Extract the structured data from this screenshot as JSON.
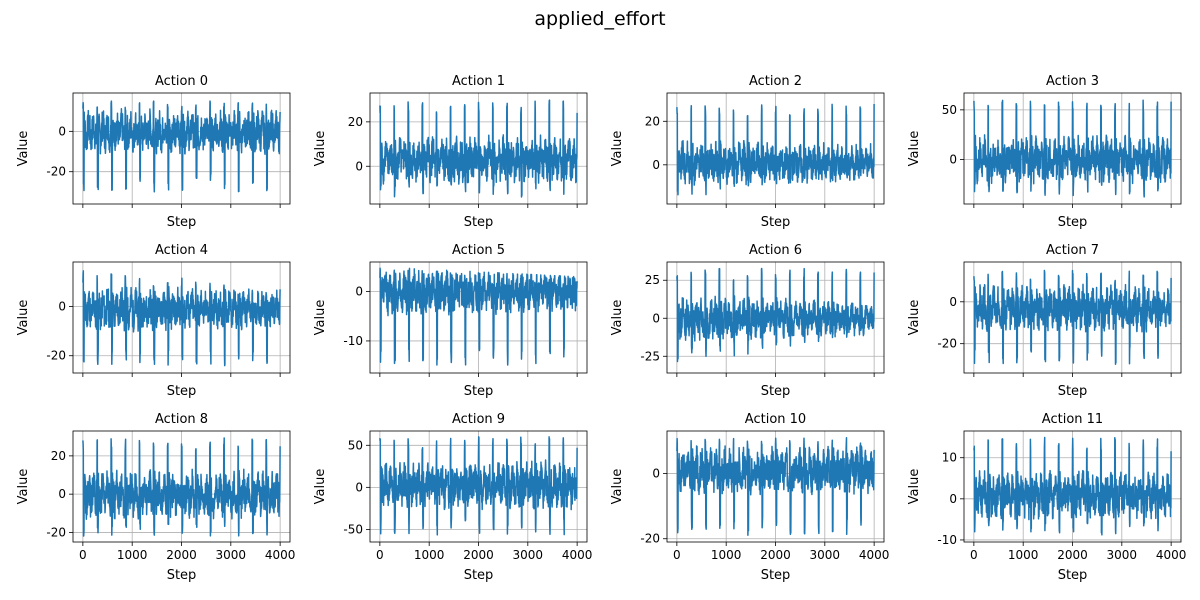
{
  "figure": {
    "title": "applied_effort"
  },
  "colors": {
    "line": "#1f77b4",
    "grid": "#b0b0b0",
    "axes": "#000000"
  },
  "chart_data": [
    {
      "type": "line",
      "title": "Action 0",
      "xlabel": "Step",
      "ylabel": "Value",
      "xlim": [
        -200,
        4200
      ],
      "ylim": [
        -36,
        19
      ],
      "yticks": [
        -20,
        0
      ],
      "xticks": [
        0,
        1000,
        2000,
        3000,
        4000
      ],
      "show_xticklabels": false,
      "grid": true,
      "series": [
        {
          "x": [
            0,
            4000
          ],
          "envelope_low": [
            -30,
            -30
          ],
          "envelope_high": [
            15,
            15
          ],
          "cycles": 14,
          "baseline": 0
        }
      ]
    },
    {
      "type": "line",
      "title": "Action 1",
      "xlabel": "Step",
      "ylabel": "Value",
      "xlim": [
        -200,
        4200
      ],
      "ylim": [
        -17,
        33
      ],
      "yticks": [
        0,
        20
      ],
      "xticks": [
        0,
        1000,
        2000,
        3000,
        4000
      ],
      "show_xticklabels": false,
      "grid": true,
      "series": [
        {
          "x": [
            0,
            4000
          ],
          "envelope_low": [
            -14,
            -14
          ],
          "envelope_high": [
            30,
            30
          ],
          "cycles": 14,
          "baseline": 3
        }
      ]
    },
    {
      "type": "line",
      "title": "Action 2",
      "xlabel": "Step",
      "ylabel": "Value",
      "xlim": [
        -200,
        4200
      ],
      "ylim": [
        -18,
        33
      ],
      "yticks": [
        0,
        20
      ],
      "xticks": [
        0,
        1000,
        2000,
        3000,
        4000
      ],
      "show_xticklabels": false,
      "grid": true,
      "series": [
        {
          "x": [
            0,
            4000
          ],
          "envelope_low": [
            -15,
            -6
          ],
          "envelope_high": [
            28,
            28
          ],
          "cycles": 14,
          "baseline": 1
        }
      ]
    },
    {
      "type": "line",
      "title": "Action 3",
      "xlabel": "Step",
      "ylabel": "Value",
      "xlim": [
        -200,
        4200
      ],
      "ylim": [
        -45,
        67
      ],
      "yticks": [
        0,
        50
      ],
      "xticks": [
        0,
        1000,
        2000,
        3000,
        4000
      ],
      "show_xticklabels": false,
      "grid": true,
      "series": [
        {
          "x": [
            0,
            4000
          ],
          "envelope_low": [
            -38,
            -38
          ],
          "envelope_high": [
            60,
            60
          ],
          "cycles": 14,
          "baseline": 0
        }
      ]
    },
    {
      "type": "line",
      "title": "Action 4",
      "xlabel": "Step",
      "ylabel": "Value",
      "xlim": [
        -200,
        4200
      ],
      "ylim": [
        -27,
        18
      ],
      "yticks": [
        -20,
        0
      ],
      "xticks": [
        0,
        1000,
        2000,
        3000,
        4000
      ],
      "show_xticklabels": false,
      "grid": true,
      "series": [
        {
          "x": [
            0,
            4000
          ],
          "envelope_low": [
            -24,
            -24
          ],
          "envelope_high": [
            15,
            8
          ],
          "cycles": 14,
          "baseline": -1
        }
      ]
    },
    {
      "type": "line",
      "title": "Action 5",
      "xlabel": "Step",
      "ylabel": "Value",
      "xlim": [
        -200,
        4200
      ],
      "ylim": [
        -16.5,
        6
      ],
      "yticks": [
        -10,
        0
      ],
      "xticks": [
        0,
        1000,
        2000,
        3000,
        4000
      ],
      "show_xticklabels": false,
      "grid": true,
      "series": [
        {
          "x": [
            0,
            4000
          ],
          "envelope_low": [
            -15,
            -15
          ],
          "envelope_high": [
            5,
            3
          ],
          "cycles": 14,
          "baseline": 0
        }
      ]
    },
    {
      "type": "line",
      "title": "Action 6",
      "xlabel": "Step",
      "ylabel": "Value",
      "xlim": [
        -200,
        4200
      ],
      "ylim": [
        -36,
        37
      ],
      "yticks": [
        -25,
        0,
        25
      ],
      "xticks": [
        0,
        1000,
        2000,
        3000,
        4000
      ],
      "show_xticklabels": false,
      "grid": true,
      "series": [
        {
          "x": [
            0,
            4000
          ],
          "envelope_low": [
            -30,
            -12
          ],
          "envelope_high": [
            33,
            33
          ],
          "cycles": 14,
          "baseline": 0
        }
      ]
    },
    {
      "type": "line",
      "title": "Action 7",
      "xlabel": "Step",
      "ylabel": "Value",
      "xlim": [
        -200,
        4200
      ],
      "ylim": [
        -34,
        19
      ],
      "yticks": [
        -20,
        0
      ],
      "xticks": [
        0,
        1000,
        2000,
        3000,
        4000
      ],
      "show_xticklabels": false,
      "grid": true,
      "series": [
        {
          "x": [
            0,
            4000
          ],
          "envelope_low": [
            -30,
            -30
          ],
          "envelope_high": [
            15,
            15
          ],
          "cycles": 14,
          "baseline": -3
        }
      ]
    },
    {
      "type": "line",
      "title": "Action 8",
      "xlabel": "Step",
      "ylabel": "Value",
      "xlim": [
        -200,
        4200
      ],
      "ylim": [
        -25,
        33
      ],
      "yticks": [
        -20,
        0,
        20
      ],
      "xticks": [
        0,
        1000,
        2000,
        3000,
        4000
      ],
      "show_xticklabels": true,
      "grid": true,
      "series": [
        {
          "x": [
            0,
            4000
          ],
          "envelope_low": [
            -22,
            -22
          ],
          "envelope_high": [
            30,
            30
          ],
          "cycles": 14,
          "baseline": 0
        }
      ]
    },
    {
      "type": "line",
      "title": "Action 9",
      "xlabel": "Step",
      "ylabel": "Value",
      "xlim": [
        -200,
        4200
      ],
      "ylim": [
        -65,
        67
      ],
      "yticks": [
        -50,
        0,
        50
      ],
      "xticks": [
        0,
        1000,
        2000,
        3000,
        4000
      ],
      "show_xticklabels": true,
      "grid": true,
      "series": [
        {
          "x": [
            0,
            4000
          ],
          "envelope_low": [
            -57,
            -57
          ],
          "envelope_high": [
            60,
            60
          ],
          "cycles": 14,
          "baseline": 3
        }
      ]
    },
    {
      "type": "line",
      "title": "Action 10",
      "xlabel": "Step",
      "ylabel": "Value",
      "xlim": [
        -200,
        4200
      ],
      "ylim": [
        -21,
        13
      ],
      "yticks": [
        -20,
        0
      ],
      "xticks": [
        0,
        1000,
        2000,
        3000,
        4000
      ],
      "show_xticklabels": true,
      "grid": true,
      "series": [
        {
          "x": [
            0,
            4000
          ],
          "envelope_low": [
            -19,
            -19
          ],
          "envelope_high": [
            11,
            11
          ],
          "cycles": 14,
          "baseline": 1
        }
      ]
    },
    {
      "type": "line",
      "title": "Action 11",
      "xlabel": "Step",
      "ylabel": "Value",
      "xlim": [
        -200,
        4200
      ],
      "ylim": [
        -10.5,
        16.5
      ],
      "yticks": [
        -10,
        0,
        10
      ],
      "xticks": [
        0,
        1000,
        2000,
        3000,
        4000
      ],
      "show_xticklabels": true,
      "grid": true,
      "series": [
        {
          "x": [
            0,
            4000
          ],
          "envelope_low": [
            -9,
            -9
          ],
          "envelope_high": [
            15,
            15
          ],
          "cycles": 14,
          "baseline": 1
        }
      ]
    }
  ]
}
